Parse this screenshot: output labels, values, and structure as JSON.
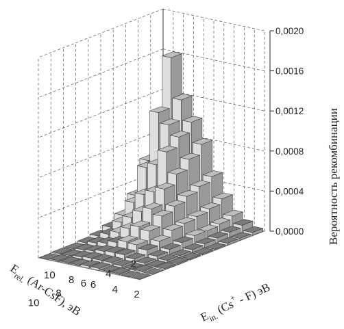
{
  "chart_data": {
    "type": "bar3d",
    "x_axis": {
      "label_main": "E",
      "label_sub": "rel.",
      "label_rest": " (Ar-CsF), эВ",
      "ticks": [
        "2",
        "4",
        "6",
        "8",
        "10"
      ]
    },
    "y_axis": {
      "label_main": "E",
      "label_sub": "in.",
      "label_mid": " (Cs",
      "label_sup": "+",
      "label_rest": " - F) эВ",
      "ticks": [
        "10",
        "8",
        "6",
        "4",
        "2"
      ]
    },
    "z_axis": {
      "label": "Вероятность рекомбинации",
      "ticks": [
        "0,0000",
        "0,0004",
        "0,0008",
        "0,0012",
        "0,0016",
        "0,0020"
      ],
      "range": [
        0,
        0.002
      ]
    },
    "x_values": [
      1,
      2,
      3,
      4,
      5,
      6,
      7,
      8,
      9,
      10
    ],
    "y_values": [
      1,
      2,
      3,
      4,
      5,
      6,
      7,
      8,
      9,
      10
    ],
    "z_matrix": [
      [
        0.0009,
        0.0016,
        0.0012,
        0.001,
        0.0008,
        0.0005,
        0.0003,
        0.00015,
        8e-05,
        3e-05
      ],
      [
        0.0006,
        0.0011,
        0.001,
        0.0009,
        0.0007,
        0.00045,
        0.00025,
        0.00012,
        6e-05,
        2e-05
      ],
      [
        0.0003,
        0.0006,
        0.00065,
        0.0008,
        0.0006,
        0.0004,
        0.00022,
        0.0001,
        5e-05,
        2e-05
      ],
      [
        0.00015,
        0.0003,
        0.0004,
        0.00045,
        0.0005,
        0.00035,
        0.0002,
        0.0001,
        4e-05,
        1e-05
      ],
      [
        8e-05,
        0.00015,
        0.00022,
        0.0003,
        0.00035,
        0.0003,
        0.00018,
        8e-05,
        3e-05,
        1e-05
      ],
      [
        4e-05,
        8e-05,
        0.00012,
        0.00018,
        0.00022,
        0.0002,
        0.00012,
        6e-05,
        2e-05,
        1e-05
      ],
      [
        2e-05,
        4e-05,
        6e-05,
        9e-05,
        0.00012,
        0.00011,
        8e-05,
        4e-05,
        2e-05,
        1e-05
      ],
      [
        1e-05,
        2e-05,
        3e-05,
        5e-05,
        6e-05,
        6e-05,
        4e-05,
        2e-05,
        1e-05,
        1e-05
      ],
      [
        1e-05,
        1e-05,
        2e-05,
        3e-05,
        3e-05,
        3e-05,
        2e-05,
        1e-05,
        1e-05,
        0.0
      ],
      [
        0.0,
        1e-05,
        1e-05,
        1e-05,
        2e-05,
        2e-05,
        1e-05,
        1e-05,
        0.0,
        0.0
      ]
    ],
    "grid": true,
    "colors": {
      "top": "#bdbdbd",
      "right": "#dedede",
      "left": "#9a9a9a",
      "edge": "#3a3a3a"
    }
  }
}
